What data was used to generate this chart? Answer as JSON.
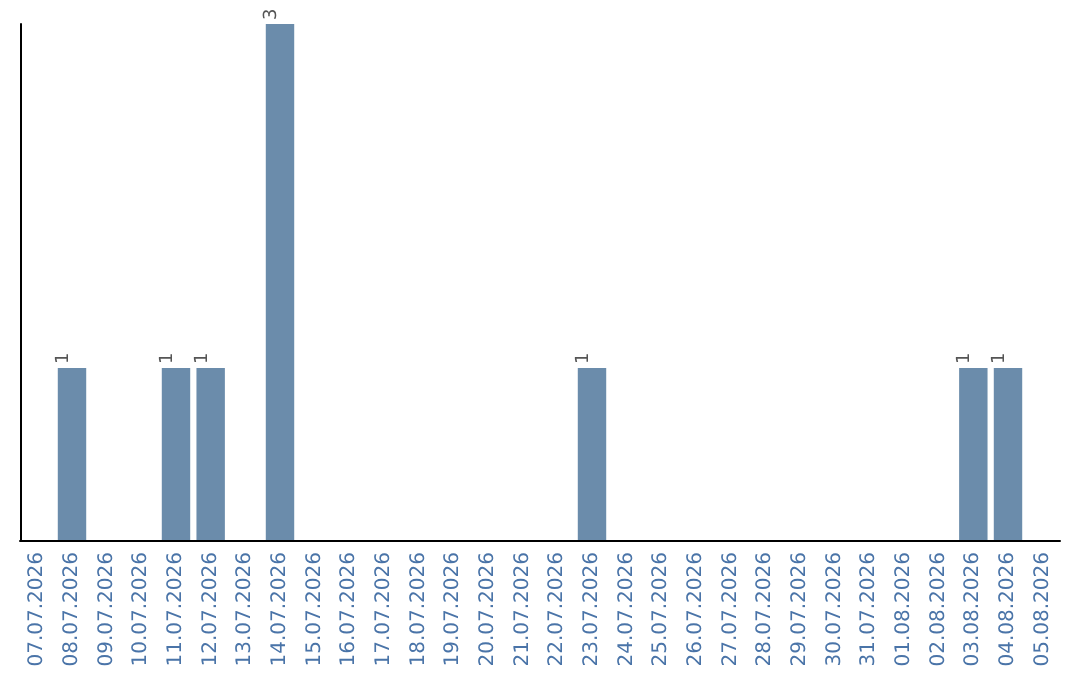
{
  "chart_data": {
    "type": "bar",
    "categories": [
      "07.07.2026",
      "08.07.2026",
      "09.07.2026",
      "10.07.2026",
      "11.07.2026",
      "12.07.2026",
      "13.07.2026",
      "14.07.2026",
      "15.07.2026",
      "16.07.2026",
      "17.07.2026",
      "18.07.2026",
      "19.07.2026",
      "20.07.2026",
      "21.07.2026",
      "22.07.2026",
      "23.07.2026",
      "24.07.2026",
      "25.07.2026",
      "26.07.2026",
      "27.07.2026",
      "28.07.2026",
      "29.07.2026",
      "30.07.2026",
      "31.07.2026",
      "01.08.2026",
      "02.08.2026",
      "03.08.2026",
      "04.08.2026",
      "05.08.2026"
    ],
    "values": [
      0,
      1,
      0,
      0,
      1,
      1,
      0,
      3,
      0,
      0,
      0,
      0,
      0,
      0,
      0,
      0,
      1,
      0,
      0,
      0,
      0,
      0,
      0,
      0,
      0,
      0,
      0,
      1,
      1,
      0
    ],
    "value_labels": [
      null,
      "1",
      null,
      null,
      "1",
      "1",
      null,
      "3",
      null,
      null,
      null,
      null,
      null,
      null,
      null,
      null,
      "1",
      null,
      null,
      null,
      null,
      null,
      null,
      null,
      null,
      null,
      null,
      "1",
      "1",
      null
    ],
    "color": "#6b8cab",
    "grid": false
  }
}
